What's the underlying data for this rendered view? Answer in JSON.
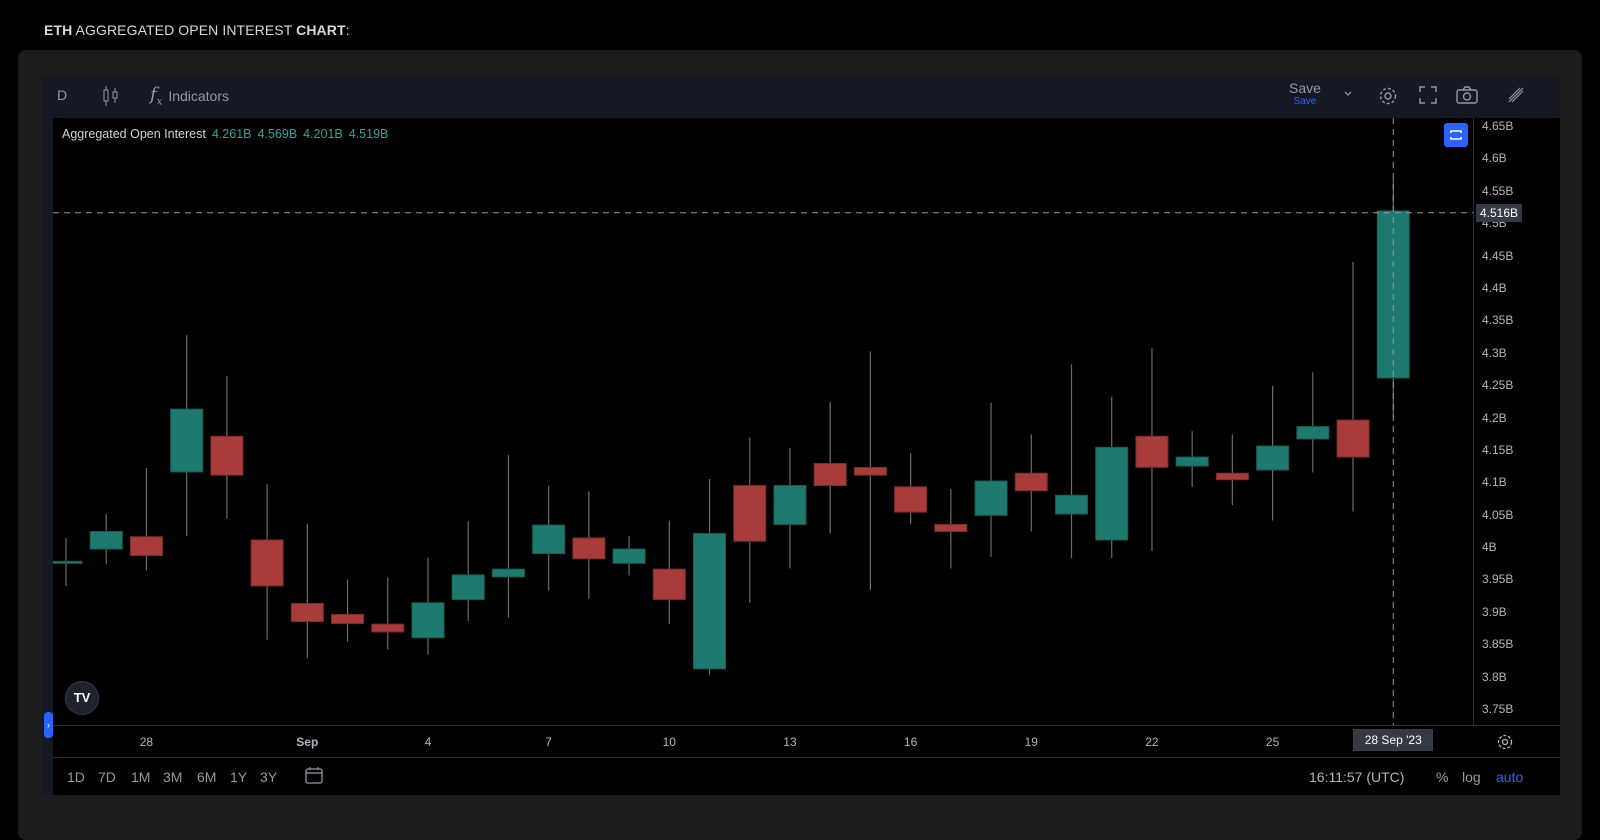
{
  "heading": {
    "part1": "ETH",
    "part2": " AGGREGATED OPEN INTEREST ",
    "part3": "CHART",
    "part4": ":"
  },
  "toolbar": {
    "interval": "D",
    "indicators_label": "Indicators",
    "save_label": "Save",
    "save_sub": "Save",
    "icons": [
      "candles-icon",
      "fx-icon",
      "chevron-down-icon",
      "gear-icon",
      "fullscreen-icon",
      "camera-icon",
      "pencil-icon"
    ]
  },
  "legend": {
    "name": "Aggregated Open Interest",
    "open": "4.261B",
    "high": "4.569B",
    "low": "4.201B",
    "close": "4.519B"
  },
  "crosshair": {
    "price_label": "4.516B",
    "date_label": "28 Sep '23"
  },
  "bottom_bar": {
    "ranges": [
      "1D",
      "7D",
      "1M",
      "3M",
      "6M",
      "1Y",
      "3Y"
    ],
    "time": "16:11:57 (UTC)",
    "percent": "%",
    "log": "log",
    "auto": "auto"
  },
  "colors": {
    "up": "#1e7a6e",
    "down": "#a83c3a",
    "wick": "#6b6b6b",
    "legend_value": "#26a69a",
    "accent": "#2962ff"
  },
  "chart_data": {
    "type": "candlestick",
    "series_name": "Aggregated Open Interest",
    "ylim": [
      3.72,
      4.665
    ],
    "y_ticks": [
      "4.65B",
      "4.6B",
      "4.55B",
      "4.5B",
      "4.45B",
      "4.4B",
      "4.35B",
      "4.3B",
      "4.25B",
      "4.2B",
      "4.15B",
      "4.1B",
      "4.05B",
      "4B",
      "3.95B",
      "3.9B",
      "3.85B",
      "3.8B",
      "3.75B"
    ],
    "y_tick_values": [
      4.65,
      4.6,
      4.55,
      4.5,
      4.45,
      4.4,
      4.35,
      4.3,
      4.25,
      4.2,
      4.15,
      4.1,
      4.05,
      4.0,
      3.95,
      3.9,
      3.85,
      3.8,
      3.75
    ],
    "x_ticks": [
      {
        "label": "28",
        "date": "28 Aug '23"
      },
      {
        "label": "Sep",
        "date": "1 Sep '23"
      },
      {
        "label": "4",
        "date": "4 Sep '23"
      },
      {
        "label": "7",
        "date": "7 Sep '23"
      },
      {
        "label": "10",
        "date": "10 Sep '23"
      },
      {
        "label": "13",
        "date": "13 Sep '23"
      },
      {
        "label": "16",
        "date": "16 Sep '23"
      },
      {
        "label": "19",
        "date": "19 Sep '23"
      },
      {
        "label": "22",
        "date": "22 Sep '23"
      },
      {
        "label": "25",
        "date": "25 Sep '23"
      }
    ],
    "unit": "B",
    "candles": [
      {
        "date": "26 Aug '23",
        "o": 3.975,
        "h": 4.014,
        "l": 3.94,
        "c": 3.978
      },
      {
        "date": "27 Aug '23",
        "o": 3.997,
        "h": 4.051,
        "l": 3.974,
        "c": 4.024
      },
      {
        "date": "28 Aug '23",
        "o": 4.016,
        "h": 4.122,
        "l": 3.964,
        "c": 3.987
      },
      {
        "date": "29 Aug '23",
        "o": 4.116,
        "h": 4.327,
        "l": 4.017,
        "c": 4.213
      },
      {
        "date": "30 Aug '23",
        "o": 4.171,
        "h": 4.264,
        "l": 4.044,
        "c": 4.111
      },
      {
        "date": "31 Aug '23",
        "o": 4.011,
        "h": 4.097,
        "l": 3.857,
        "c": 3.94
      },
      {
        "date": "1 Sep '23",
        "o": 3.913,
        "h": 4.036,
        "l": 3.829,
        "c": 3.885
      },
      {
        "date": "2 Sep '23",
        "o": 3.896,
        "h": 3.95,
        "l": 3.854,
        "c": 3.882
      },
      {
        "date": "3 Sep '23",
        "o": 3.881,
        "h": 3.953,
        "l": 3.842,
        "c": 3.869
      },
      {
        "date": "4 Sep '23",
        "o": 3.86,
        "h": 3.984,
        "l": 3.834,
        "c": 3.914
      },
      {
        "date": "5 Sep '23",
        "o": 3.919,
        "h": 4.04,
        "l": 3.886,
        "c": 3.957
      },
      {
        "date": "6 Sep '23",
        "o": 3.954,
        "h": 4.142,
        "l": 3.891,
        "c": 3.966
      },
      {
        "date": "7 Sep '23",
        "o": 3.99,
        "h": 4.094,
        "l": 3.933,
        "c": 4.034
      },
      {
        "date": "8 Sep '23",
        "o": 4.014,
        "h": 4.086,
        "l": 3.92,
        "c": 3.982
      },
      {
        "date": "9 Sep '23",
        "o": 3.975,
        "h": 4.017,
        "l": 3.956,
        "c": 3.997
      },
      {
        "date": "10 Sep '23",
        "o": 3.966,
        "h": 4.041,
        "l": 3.881,
        "c": 3.919
      },
      {
        "date": "11 Sep '23",
        "o": 3.812,
        "h": 4.105,
        "l": 3.803,
        "c": 4.021
      },
      {
        "date": "12 Sep '23",
        "o": 4.095,
        "h": 4.169,
        "l": 3.914,
        "c": 4.009
      },
      {
        "date": "13 Sep '23",
        "o": 4.035,
        "h": 4.153,
        "l": 3.967,
        "c": 4.095
      },
      {
        "date": "14 Sep '23",
        "o": 4.129,
        "h": 4.224,
        "l": 4.021,
        "c": 4.095
      },
      {
        "date": "15 Sep '23",
        "o": 4.123,
        "h": 4.302,
        "l": 3.934,
        "c": 4.111
      },
      {
        "date": "16 Sep '23",
        "o": 4.093,
        "h": 4.145,
        "l": 4.036,
        "c": 4.054
      },
      {
        "date": "17 Sep '23",
        "o": 4.035,
        "h": 4.09,
        "l": 3.967,
        "c": 4.024
      },
      {
        "date": "18 Sep '23",
        "o": 4.049,
        "h": 4.223,
        "l": 3.985,
        "c": 4.102
      },
      {
        "date": "19 Sep '23",
        "o": 4.114,
        "h": 4.174,
        "l": 4.024,
        "c": 4.087
      },
      {
        "date": "20 Sep '23",
        "o": 4.051,
        "h": 4.282,
        "l": 3.983,
        "c": 4.08
      },
      {
        "date": "21 Sep '23",
        "o": 4.011,
        "h": 4.232,
        "l": 3.983,
        "c": 4.154
      },
      {
        "date": "22 Sep '23",
        "o": 4.171,
        "h": 4.307,
        "l": 3.994,
        "c": 4.123
      },
      {
        "date": "23 Sep '23",
        "o": 4.125,
        "h": 4.179,
        "l": 4.093,
        "c": 4.139
      },
      {
        "date": "24 Sep '23",
        "o": 4.114,
        "h": 4.174,
        "l": 4.065,
        "c": 4.104
      },
      {
        "date": "25 Sep '23",
        "o": 4.119,
        "h": 4.249,
        "l": 4.041,
        "c": 4.156
      },
      {
        "date": "26 Sep '23",
        "o": 4.167,
        "h": 4.27,
        "l": 4.115,
        "c": 4.186
      },
      {
        "date": "27 Sep '23",
        "o": 4.196,
        "h": 4.44,
        "l": 4.055,
        "c": 4.139
      },
      {
        "date": "28 Sep '23",
        "o": 4.261,
        "h": 4.569,
        "l": 4.201,
        "c": 4.519
      }
    ],
    "crosshair_value": 4.516,
    "grid": false,
    "legend": "top-left"
  }
}
